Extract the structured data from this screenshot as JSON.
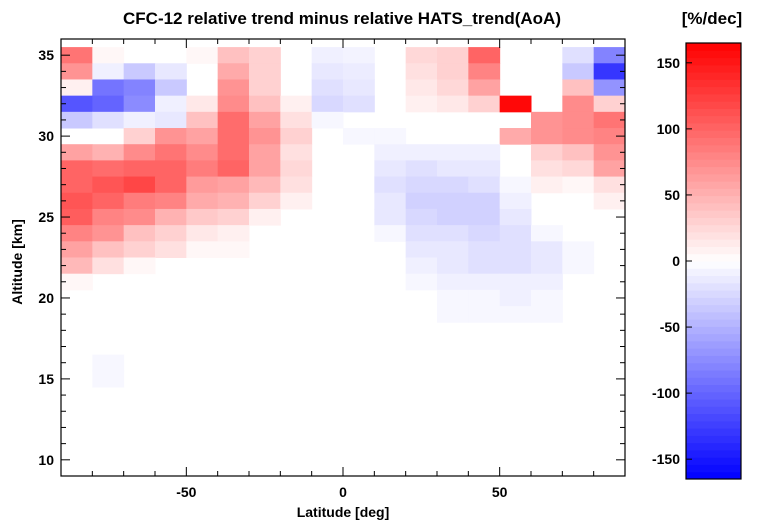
{
  "chart_data": {
    "type": "heatmap",
    "title": "CFC-12 relative trend minus relative HATS_trend(AoA)",
    "xlabel": "Latitude [deg]",
    "ylabel": "Altitude [km]",
    "xlim": [
      -90,
      90
    ],
    "ylim": [
      9,
      36
    ],
    "xticks": [
      "-50",
      "0",
      "50"
    ],
    "yticks": [
      "10",
      "15",
      "20",
      "25",
      "30",
      "35"
    ],
    "x_centers": [
      -85,
      -75,
      -65,
      -55,
      -45,
      -35,
      -25,
      -15,
      -5,
      5,
      15,
      25,
      35,
      45,
      55,
      65,
      75,
      85
    ],
    "y_centers": [
      35,
      34,
      33,
      32,
      31,
      30,
      29,
      28,
      27,
      26,
      25,
      24,
      23,
      22,
      21,
      20,
      19,
      18,
      17,
      16,
      15,
      14,
      13,
      12,
      11,
      10
    ],
    "values": [
      [
        90,
        5,
        0,
        0,
        5,
        40,
        30,
        0,
        -10,
        -8,
        0,
        25,
        30,
        100,
        0,
        0,
        -20,
        -80
      ],
      [
        70,
        -10,
        -35,
        -15,
        0,
        55,
        30,
        0,
        -15,
        -12,
        0,
        20,
        30,
        80,
        0,
        0,
        -35,
        -130
      ],
      [
        10,
        -90,
        -80,
        -35,
        0,
        70,
        30,
        0,
        -20,
        -15,
        0,
        15,
        25,
        60,
        0,
        0,
        40,
        -70
      ],
      [
        -110,
        -100,
        -75,
        -10,
        15,
        75,
        40,
        10,
        -25,
        -20,
        0,
        10,
        15,
        30,
        160,
        0,
        75,
        30
      ],
      [
        -35,
        -20,
        -10,
        -15,
        40,
        95,
        60,
        20,
        -5,
        0,
        0,
        0,
        0,
        0,
        0,
        70,
        75,
        90
      ],
      [
        0,
        0,
        30,
        70,
        60,
        95,
        70,
        30,
        0,
        -5,
        -5,
        0,
        0,
        0,
        55,
        70,
        75,
        80
      ],
      [
        60,
        50,
        75,
        90,
        75,
        95,
        60,
        20,
        0,
        0,
        -10,
        -10,
        -10,
        -10,
        0,
        30,
        40,
        70
      ],
      [
        100,
        95,
        100,
        100,
        85,
        100,
        60,
        25,
        0,
        0,
        -15,
        -20,
        -15,
        -15,
        0,
        20,
        25,
        60
      ],
      [
        100,
        110,
        120,
        100,
        65,
        60,
        45,
        20,
        0,
        0,
        -20,
        -25,
        -25,
        -20,
        -5,
        10,
        5,
        20
      ],
      [
        110,
        100,
        85,
        80,
        55,
        50,
        30,
        10,
        0,
        0,
        -15,
        -30,
        -30,
        -30,
        -10,
        0,
        0,
        10
      ],
      [
        105,
        80,
        75,
        50,
        35,
        30,
        10,
        0,
        0,
        0,
        -15,
        -25,
        -30,
        -30,
        -15,
        0,
        0,
        0
      ],
      [
        80,
        70,
        40,
        30,
        15,
        10,
        0,
        0,
        0,
        0,
        -5,
        -20,
        -20,
        -25,
        -20,
        -5,
        0,
        0
      ],
      [
        60,
        40,
        30,
        20,
        5,
        5,
        0,
        0,
        0,
        0,
        0,
        -15,
        -15,
        -20,
        -20,
        -15,
        -5,
        0
      ],
      [
        45,
        20,
        5,
        0,
        0,
        0,
        0,
        0,
        0,
        0,
        0,
        -10,
        -15,
        -20,
        -20,
        -15,
        -5,
        0
      ],
      [
        5,
        0,
        0,
        0,
        0,
        0,
        0,
        0,
        0,
        0,
        0,
        -5,
        -10,
        -10,
        -10,
        -10,
        0,
        0
      ],
      [
        0,
        0,
        0,
        0,
        0,
        0,
        0,
        0,
        0,
        0,
        0,
        0,
        -5,
        -5,
        -10,
        -5,
        0,
        0
      ],
      [
        0,
        0,
        0,
        0,
        0,
        0,
        0,
        0,
        0,
        0,
        0,
        0,
        -5,
        -5,
        -5,
        -5,
        0,
        0
      ],
      [
        0,
        0,
        0,
        0,
        0,
        0,
        0,
        0,
        0,
        0,
        0,
        0,
        0,
        0,
        0,
        0,
        0,
        0
      ],
      [
        0,
        0,
        0,
        0,
        0,
        0,
        0,
        0,
        0,
        0,
        0,
        0,
        0,
        0,
        0,
        0,
        0,
        0
      ],
      [
        0,
        -5,
        0,
        0,
        0,
        0,
        0,
        0,
        0,
        0,
        0,
        0,
        0,
        0,
        0,
        0,
        0,
        0
      ],
      [
        0,
        -5,
        0,
        0,
        0,
        0,
        0,
        0,
        0,
        0,
        0,
        0,
        0,
        0,
        0,
        0,
        0,
        0
      ],
      [
        0,
        0,
        0,
        0,
        0,
        0,
        0,
        0,
        0,
        0,
        0,
        0,
        0,
        0,
        0,
        0,
        0,
        0
      ],
      [
        0,
        0,
        0,
        0,
        0,
        0,
        0,
        0,
        0,
        0,
        0,
        0,
        0,
        0,
        0,
        0,
        0,
        0
      ],
      [
        0,
        0,
        0,
        0,
        0,
        0,
        0,
        0,
        0,
        0,
        0,
        0,
        0,
        0,
        0,
        0,
        0,
        0
      ],
      [
        0,
        0,
        0,
        0,
        0,
        0,
        0,
        0,
        0,
        0,
        0,
        0,
        0,
        0,
        0,
        0,
        0,
        0
      ],
      [
        0,
        0,
        0,
        0,
        0,
        0,
        0,
        0,
        0,
        0,
        0,
        0,
        0,
        0,
        0,
        0,
        0,
        0
      ]
    ],
    "colorbar": {
      "label": "[%/dec]",
      "range": [
        -165,
        165
      ],
      "ticks": [
        "150",
        "100",
        "50",
        "0",
        "-50",
        "-100",
        "-150"
      ],
      "colormap": [
        "#0000ff",
        "#ffffff",
        "#ff0000"
      ]
    },
    "grid": false,
    "legend": "colorbar-right"
  }
}
